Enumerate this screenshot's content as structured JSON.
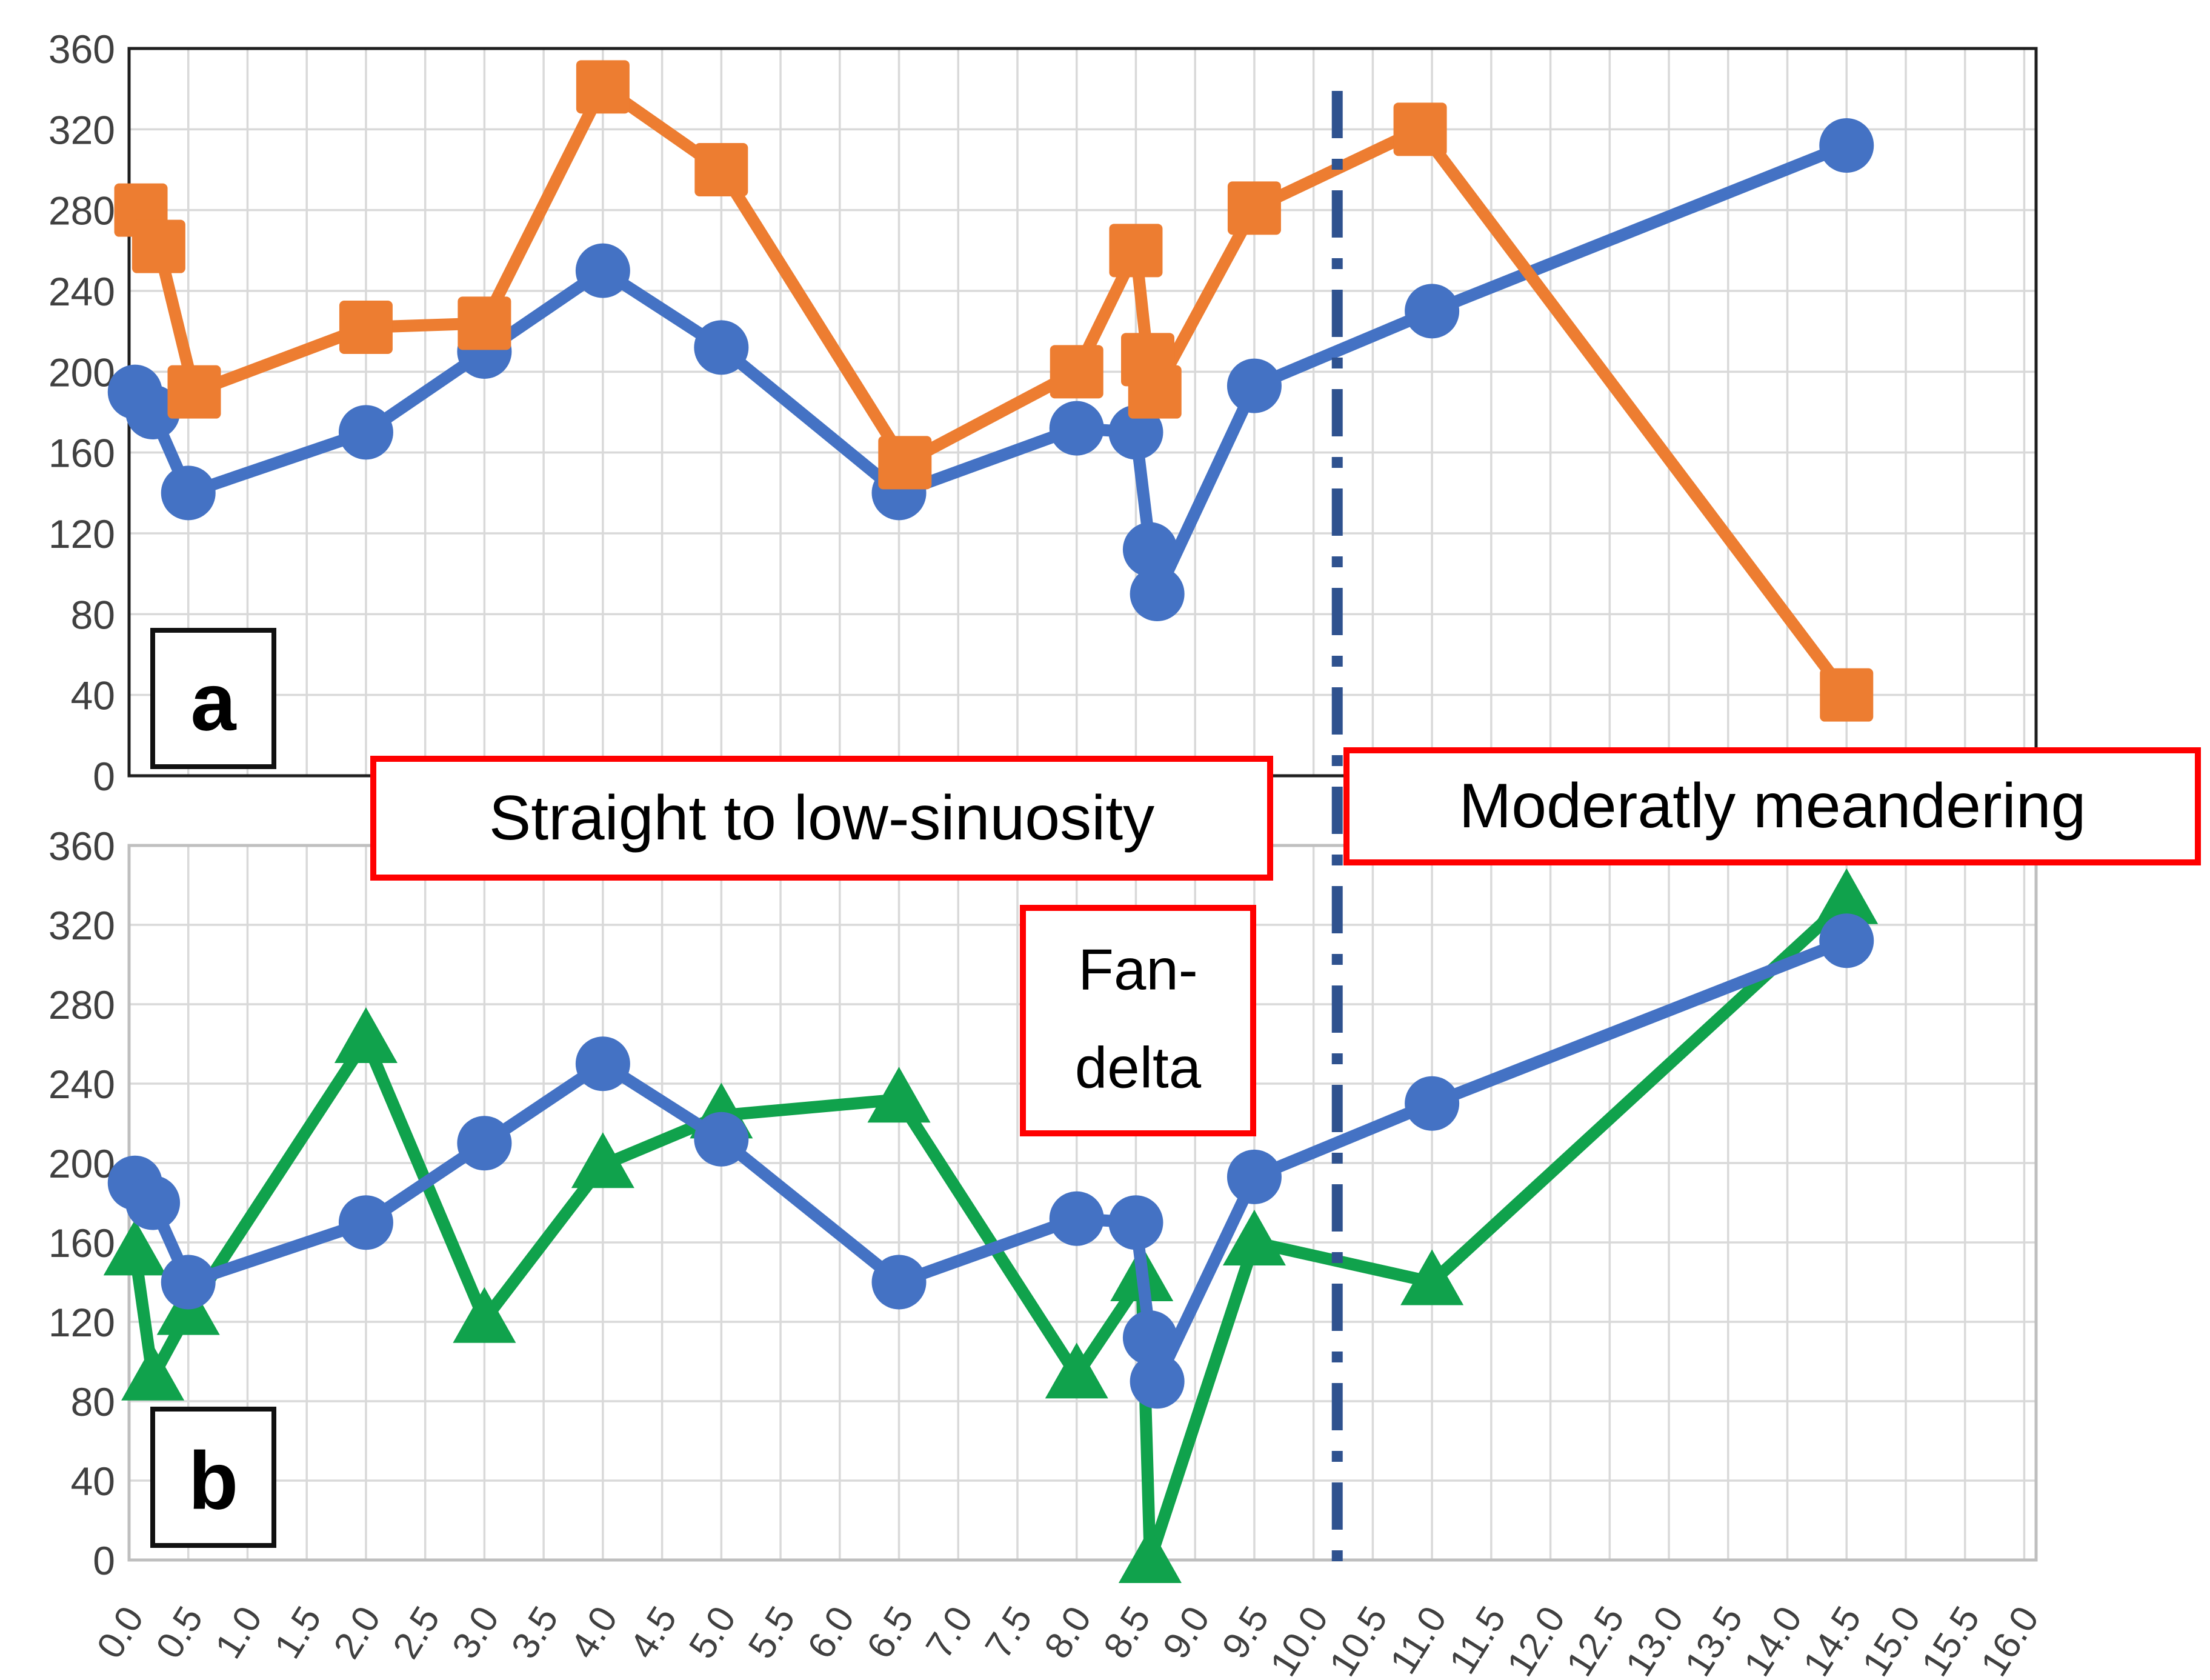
{
  "figure": {
    "panel_a_label": "a",
    "panel_b_label": "b",
    "annotations": {
      "zone1": "Straight to low-sinuosity",
      "zone2": "Moderatly meandering",
      "zone3_line1": "Fan-",
      "zone3_line2": "delta",
      "divider_x": 10.2
    },
    "colors": {
      "blue_series": "#4472C4",
      "orange_series": "#ED7D31",
      "green_series": "#10A24C",
      "divider_line": "#2F528F",
      "annotation_border": "#FF0000",
      "gridline": "#D9D9D9",
      "panel_a_border": "#1F1F1F",
      "panel_b_border": "#BFBFBF",
      "tick_text": "#404040"
    }
  },
  "chart_data": [
    {
      "id": "panel-a",
      "type": "line",
      "title": "",
      "xlabel": "",
      "ylabel": "",
      "xlim": [
        0,
        16.1
      ],
      "ylim": [
        0,
        360
      ],
      "grid": true,
      "legend_position": "none",
      "y_tick_labels": [
        "0",
        "40",
        "80",
        "120",
        "160",
        "200",
        "240",
        "280",
        "320",
        "360"
      ],
      "x_tick_labels": [],
      "series": [
        {
          "name": "blue-circles",
          "marker": "circle",
          "color": "#4472C4",
          "points": [
            [
              0.05,
              190
            ],
            [
              0.2,
              180
            ],
            [
              0.5,
              140
            ],
            [
              2.0,
              170
            ],
            [
              3.0,
              210
            ],
            [
              4.0,
              250
            ],
            [
              5.0,
              212
            ],
            [
              6.5,
              140
            ],
            [
              8.0,
              172
            ],
            [
              8.5,
              170
            ],
            [
              8.62,
              112
            ],
            [
              8.68,
              90
            ],
            [
              9.5,
              193
            ],
            [
              11.0,
              230
            ],
            [
              14.5,
              312
            ]
          ]
        },
        {
          "name": "orange-squares",
          "marker": "square",
          "color": "#ED7D31",
          "points": [
            [
              0.1,
              280
            ],
            [
              0.25,
              262
            ],
            [
              0.55,
              190
            ],
            [
              2.0,
              222
            ],
            [
              3.0,
              224
            ],
            [
              4.0,
              341
            ],
            [
              5.0,
              300
            ],
            [
              6.55,
              155
            ],
            [
              8.0,
              200
            ],
            [
              8.5,
              260
            ],
            [
              8.6,
              206
            ],
            [
              8.66,
              190
            ],
            [
              9.5,
              281
            ],
            [
              10.9,
              320
            ],
            [
              14.5,
              40
            ]
          ]
        }
      ]
    },
    {
      "id": "panel-b",
      "type": "line",
      "title": "",
      "xlabel": "",
      "ylabel": "",
      "xlim": [
        0,
        16.1
      ],
      "ylim": [
        0,
        360
      ],
      "grid": true,
      "legend_position": "none",
      "y_tick_labels": [
        "0",
        "40",
        "80",
        "120",
        "160",
        "200",
        "240",
        "280",
        "320",
        "360"
      ],
      "x_tick_labels": [
        "0.0",
        "0.5",
        "1.0",
        "1.5",
        "2.0",
        "2.5",
        "3.0",
        "3.5",
        "4.0",
        "4.5",
        "5.0",
        "5.5",
        "6.0",
        "6.5",
        "7.0",
        "7.5",
        "8.0",
        "8.5",
        "9.0",
        "9.5",
        "10.0",
        "10.5",
        "11.0",
        "11.5",
        "12.0",
        "12.5",
        "13.0",
        "13.5",
        "14.0",
        "14.5",
        "15.0",
        "15.5",
        "16.0"
      ],
      "series": [
        {
          "name": "green-triangles",
          "marker": "triangle",
          "color": "#10A24C",
          "points": [
            [
              0.05,
              155
            ],
            [
              0.2,
              92
            ],
            [
              0.5,
              125
            ],
            [
              2.0,
              262
            ],
            [
              3.0,
              121
            ],
            [
              4.0,
              199
            ],
            [
              5.0,
              224
            ],
            [
              6.5,
              232
            ],
            [
              8.0,
              93
            ],
            [
              8.55,
              142
            ],
            [
              8.62,
              0
            ],
            [
              9.5,
              160
            ],
            [
              11.0,
              140
            ],
            [
              14.5,
              332
            ]
          ]
        },
        {
          "name": "blue-circles",
          "marker": "circle",
          "color": "#4472C4",
          "points": [
            [
              0.05,
              190
            ],
            [
              0.2,
              180
            ],
            [
              0.5,
              140
            ],
            [
              2.0,
              170
            ],
            [
              3.0,
              210
            ],
            [
              4.0,
              250
            ],
            [
              5.0,
              212
            ],
            [
              6.5,
              140
            ],
            [
              8.0,
              172
            ],
            [
              8.5,
              170
            ],
            [
              8.62,
              112
            ],
            [
              8.68,
              90
            ],
            [
              9.5,
              193
            ],
            [
              11.0,
              230
            ],
            [
              14.5,
              312
            ]
          ]
        }
      ]
    }
  ]
}
